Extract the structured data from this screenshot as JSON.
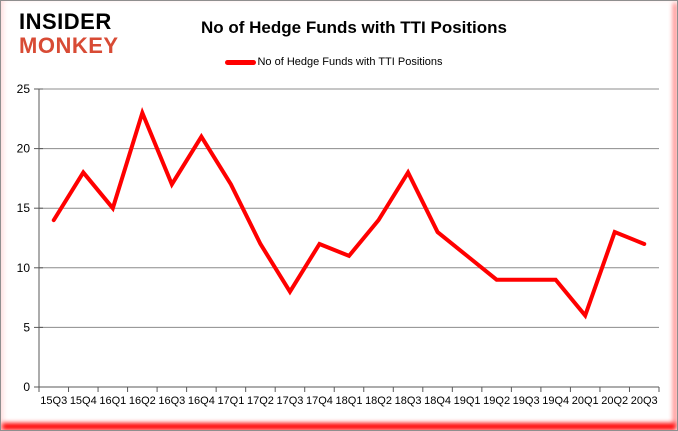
{
  "logo": {
    "line1": "INSIDER",
    "line2": "MONKEY",
    "line1_color": "#000000",
    "line2_color": "#d84b35"
  },
  "header": {
    "title": "No of Hedge Funds with TTI Positions"
  },
  "legend": {
    "label": "No of Hedge Funds with TTI Positions",
    "marker_color": "#ff0000"
  },
  "chart_data": {
    "type": "line",
    "title": "No of Hedge Funds with TTI Positions",
    "categories": [
      "15Q3",
      "15Q4",
      "16Q1",
      "16Q2",
      "16Q3",
      "16Q4",
      "17Q1",
      "17Q2",
      "17Q3",
      "17Q4",
      "18Q1",
      "18Q2",
      "18Q3",
      "18Q4",
      "19Q1",
      "19Q2",
      "19Q3",
      "19Q4",
      "20Q1",
      "20Q2",
      "20Q3"
    ],
    "values": [
      14,
      18,
      15,
      23,
      17,
      21,
      17,
      12,
      8,
      12,
      11,
      14,
      18,
      13,
      11,
      9,
      9,
      9,
      6,
      13,
      12
    ],
    "xlabel": "",
    "ylabel": "",
    "ylim": [
      0,
      25
    ],
    "y_ticks": [
      0,
      5,
      10,
      15,
      20,
      25
    ],
    "grid": true,
    "legend_position": "top",
    "line_color": "#ff0000",
    "grid_color": "#8c8c8c",
    "axis_color": "#595959",
    "tick_label_color": "#000000"
  }
}
